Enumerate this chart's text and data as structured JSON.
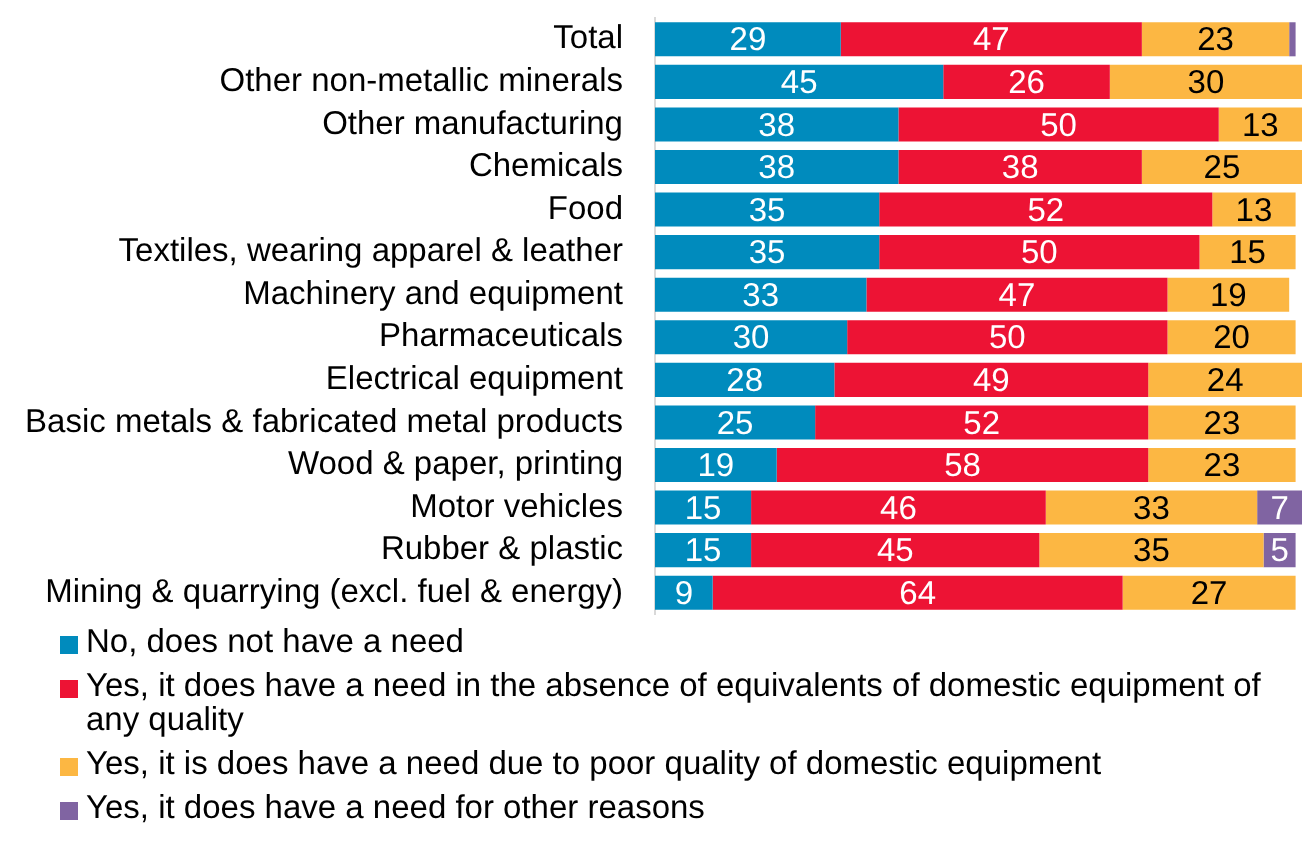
{
  "chart_data": {
    "type": "bar",
    "orientation": "horizontal",
    "stacked": true,
    "categories": [
      "Total",
      "Other non-metallic minerals",
      "Other manufacturing",
      "Chemicals",
      "Food",
      "Textiles, wearing apparel & leather",
      "Machinery and equipment",
      "Pharmaceuticals",
      "Electrical equipment",
      "Basic metals & fabricated metal products",
      "Wood & paper, printing",
      "Motor vehicles",
      "Rubber & plastic",
      "Mining & quarrying (excl. fuel & energy)"
    ],
    "series": [
      {
        "name": "No, does not have a need",
        "color": "#008bbd",
        "values": [
          29,
          45,
          38,
          38,
          35,
          35,
          33,
          30,
          28,
          25,
          19,
          15,
          15,
          9
        ],
        "value_labels": [
          "29",
          "45",
          "38",
          "38",
          "35",
          "35",
          "33",
          "30",
          "28",
          "25",
          "19",
          "15",
          "15",
          "9"
        ]
      },
      {
        "name": "Yes, it does have a need in the absence of equivalents of domestic equipment of any quality",
        "color": "#ed1334",
        "values": [
          47,
          26,
          50,
          38,
          52,
          50,
          47,
          50,
          49,
          52,
          58,
          46,
          45,
          64
        ],
        "value_labels": [
          "47",
          "26",
          "50",
          "38",
          "52",
          "50",
          "47",
          "50",
          "49",
          "52",
          "58",
          "46",
          "45",
          "64"
        ]
      },
      {
        "name": "Yes, it is does have a need due to poor quality of domestic equipment",
        "color": "#fcb743",
        "values": [
          23,
          30,
          13,
          25,
          13,
          15,
          19,
          20,
          24,
          23,
          23,
          33,
          35,
          27
        ],
        "value_labels": [
          "23",
          "30",
          "13",
          "25",
          "13",
          "15",
          "19",
          "20",
          "24",
          "23",
          "23",
          "33",
          "35",
          "27"
        ]
      },
      {
        "name": "Yes, it does have a need for other reasons",
        "color": "#8064a2",
        "values": [
          1,
          null,
          null,
          null,
          null,
          null,
          null,
          null,
          null,
          null,
          null,
          7,
          5,
          null
        ],
        "value_labels": [
          null,
          null,
          null,
          null,
          null,
          null,
          null,
          null,
          null,
          null,
          null,
          "7",
          "5",
          null
        ]
      }
    ],
    "xlim": [
      0,
      101
    ],
    "tick_labels": "y",
    "legend": "bottom"
  }
}
